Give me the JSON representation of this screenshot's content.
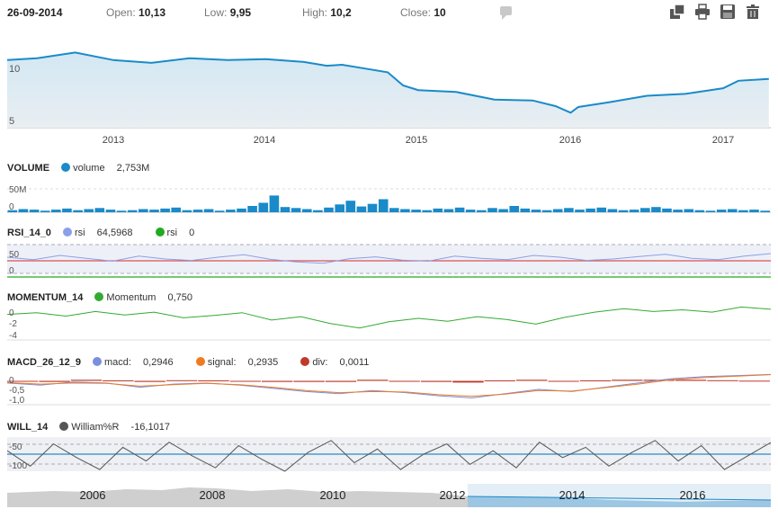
{
  "header": {
    "date": "26-09-2014",
    "open_label": "Open:",
    "open_value": "10,13",
    "low_label": "Low:",
    "low_value": "9,95",
    "high_label": "High:",
    "high_value": "10,2",
    "close_label": "Close:",
    "close_value": "10"
  },
  "toolbar": {
    "icons": [
      "layers-icon",
      "print-icon",
      "save-icon",
      "trash-icon"
    ]
  },
  "colors": {
    "price_line": "#1a8ac9",
    "price_fill_top": "#c9e4f2",
    "volume": "#1a8ac9",
    "rsi": "#8aa0e8",
    "rsi_line2": "#22aa22",
    "rsi_ref": "#d9534f",
    "momentum": "#33aa33",
    "macd": "#7a8fe0",
    "signal": "#f07a20",
    "div": "#c0392b",
    "william": "#555555",
    "will_ref": "#2a8ac9",
    "navigator": "#c9c9c9",
    "navigator_selected": "#1a8ac9"
  },
  "main_chart": {
    "y_ticks": [
      "10",
      "5"
    ],
    "x_ticks": [
      "2013",
      "2014",
      "2015",
      "2016",
      "2017"
    ]
  },
  "volume": {
    "name": "VOLUME",
    "series": "volume",
    "value": "2,753M",
    "y_ticks": [
      "50M",
      "0"
    ]
  },
  "rsi": {
    "name": "RSI_14_0",
    "series": [
      {
        "label": "rsi",
        "value": "64,5968"
      },
      {
        "label": "rsi",
        "value": "0"
      }
    ],
    "y_ticks": [
      "50",
      "0"
    ]
  },
  "momentum": {
    "name": "MOMENTUM_14",
    "series": "Momentum",
    "value": "0,750",
    "y_ticks": [
      "0",
      "-2",
      "-4"
    ]
  },
  "macd": {
    "name": "MACD_26_12_9",
    "series": [
      {
        "label": "macd:",
        "value": "0,2946"
      },
      {
        "label": "signal:",
        "value": "0,2935"
      },
      {
        "label": "div:",
        "value": "0,0011"
      }
    ],
    "y_ticks": [
      "0",
      "-0,5",
      "-1,0"
    ]
  },
  "will": {
    "name": "WILL_14",
    "series": "William%R",
    "value": "-16,1017",
    "y_ticks": [
      "-50",
      "-100"
    ]
  },
  "navigator": {
    "x_ticks": [
      "2006",
      "2008",
      "2010",
      "2012",
      "2014",
      "2016"
    ]
  },
  "chart_data": [
    {
      "type": "line",
      "title": "",
      "x_ticks": [
        "2013",
        "2014",
        "2015",
        "2016",
        "2017"
      ],
      "x": [
        2012.3,
        2012.5,
        2012.75,
        2013.0,
        2013.25,
        2013.5,
        2013.75,
        2014.0,
        2014.25,
        2014.4,
        2014.5,
        2014.65,
        2014.8,
        2014.9,
        2015.0,
        2015.25,
        2015.5,
        2015.75,
        2015.9,
        2016.0,
        2016.05,
        2016.25,
        2016.5,
        2016.75,
        2017.0,
        2017.1,
        2017.3
      ],
      "series": [
        {
          "values": [
            11.2,
            11.4,
            12.0,
            11.2,
            10.9,
            11.4,
            11.2,
            11.3,
            11.0,
            10.6,
            10.7,
            10.3,
            9.9,
            8.5,
            8.0,
            7.8,
            7.0,
            6.9,
            6.3,
            5.6,
            6.2,
            6.7,
            7.4,
            7.6,
            8.2,
            9.0,
            9.2
          ]
        }
      ],
      "ylim": [
        4,
        13
      ]
    },
    {
      "type": "bar",
      "title": "VOLUME",
      "series": [
        {
          "name": "volume",
          "values": [
            4,
            6,
            5,
            3,
            5,
            7,
            4,
            6,
            8,
            5,
            3,
            4,
            6,
            5,
            7,
            9,
            4,
            5,
            6,
            3,
            5,
            7,
            12,
            18,
            32,
            10,
            8,
            6,
            4,
            9,
            15,
            22,
            11,
            16,
            25,
            8,
            6,
            5,
            4,
            7,
            6,
            9,
            5,
            4,
            8,
            6,
            12,
            7,
            5,
            4,
            6,
            8,
            5,
            7,
            9,
            6,
            4,
            5,
            8,
            10,
            7,
            5,
            6,
            4,
            3,
            5,
            6,
            4,
            5,
            3
          ]
        }
      ],
      "ylim": [
        0,
        55
      ]
    },
    {
      "type": "line",
      "title": "RSI_14_0",
      "series": [
        {
          "name": "rsi",
          "values": [
            55,
            48,
            60,
            52,
            44,
            58,
            50,
            46,
            55,
            62,
            49,
            42,
            38,
            51,
            56,
            47,
            44,
            58,
            52,
            48,
            60,
            55,
            46,
            50,
            57,
            63,
            52,
            48,
            58,
            65
          ]
        },
        {
          "name": "rsi",
          "values": [
            0,
            0
          ]
        }
      ],
      "ylim": [
        -10,
        100
      ]
    },
    {
      "type": "line",
      "title": "MOMENTUM_14",
      "series": [
        {
          "name": "Momentum",
          "values": [
            -0.2,
            0.1,
            -0.5,
            0.3,
            -0.3,
            0.2,
            -0.8,
            -0.4,
            0.1,
            -1.2,
            -0.6,
            -1.8,
            -2.6,
            -1.5,
            -0.9,
            -1.4,
            -0.6,
            -1.1,
            -1.9,
            -0.7,
            0.2,
            0.8,
            0.3,
            0.6,
            0.2,
            1.1,
            0.7
          ]
        }
      ],
      "ylim": [
        -5,
        1
      ]
    },
    {
      "type": "line",
      "title": "MACD_26_12_9",
      "series": [
        {
          "name": "macd",
          "values": [
            -0.1,
            -0.2,
            -0.05,
            -0.1,
            -0.3,
            -0.15,
            -0.1,
            -0.2,
            -0.35,
            -0.5,
            -0.6,
            -0.45,
            -0.55,
            -0.7,
            -0.8,
            -0.6,
            -0.4,
            -0.5,
            -0.3,
            -0.1,
            0.1,
            0.2,
            0.25,
            0.3
          ]
        },
        {
          "name": "signal",
          "values": [
            -0.08,
            -0.15,
            -0.1,
            -0.12,
            -0.25,
            -0.18,
            -0.12,
            -0.18,
            -0.3,
            -0.45,
            -0.55,
            -0.5,
            -0.52,
            -0.65,
            -0.72,
            -0.62,
            -0.45,
            -0.48,
            -0.32,
            -0.15,
            0.05,
            0.15,
            0.22,
            0.29
          ]
        },
        {
          "name": "div",
          "values": [
            -0.02,
            -0.05,
            0.05,
            0.02,
            -0.05,
            0.03,
            0.02,
            -0.02,
            -0.05,
            -0.05,
            -0.05,
            0.05,
            -0.03,
            -0.05,
            -0.08,
            0.02,
            0.05,
            -0.02,
            0.02,
            0.05,
            0.05,
            0.05,
            0.03,
            0.01
          ]
        }
      ],
      "ylim": [
        -1.2,
        0.4
      ]
    },
    {
      "type": "line",
      "title": "WILL_14",
      "series": [
        {
          "name": "William%R",
          "values": [
            -40,
            -85,
            -20,
            -60,
            -95,
            -30,
            -70,
            -15,
            -55,
            -90,
            -25,
            -65,
            -100,
            -45,
            -10,
            -75,
            -35,
            -95,
            -50,
            -20,
            -80,
            -40,
            -90,
            -15,
            -60,
            -30,
            -85,
            -45,
            -10,
            -70,
            -25,
            -95,
            -55,
            -16
          ]
        }
      ],
      "ylim": [
        -100,
        0
      ]
    }
  ]
}
